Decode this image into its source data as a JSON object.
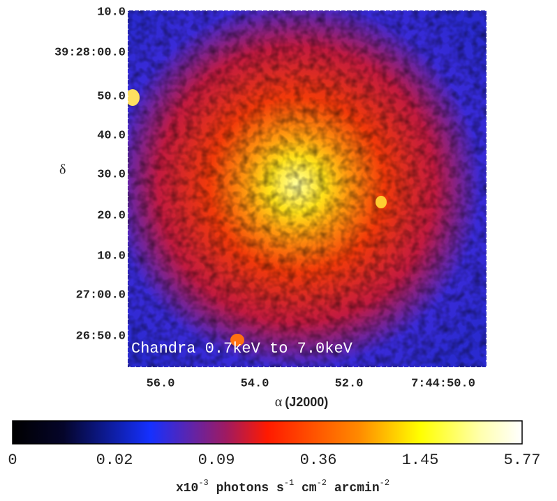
{
  "figure": {
    "y_tick_labels": [
      "10.0",
      "39:28:00.0",
      "50.0",
      "40.0",
      "30.0",
      "20.0",
      "10.0",
      "27:00.0",
      "26:50.0"
    ],
    "y_axis_label": "δ",
    "x_tick_labels": [
      "56.0",
      "54.0",
      "52.0",
      "7:44:50.0"
    ],
    "x_axis_label_symbol": "α",
    "x_axis_label_text": "(J2000)",
    "annotation": "Chandra 0.7keV to 7.0keV",
    "colorbar": {
      "tick_labels": [
        "0",
        "0.02",
        "0.09",
        "0.36",
        "1.45",
        "5.77"
      ],
      "label_parts": [
        "x10",
        "-3",
        " photons s",
        "-1",
        " cm",
        "-2",
        " arcmin",
        "-2"
      ]
    }
  }
}
